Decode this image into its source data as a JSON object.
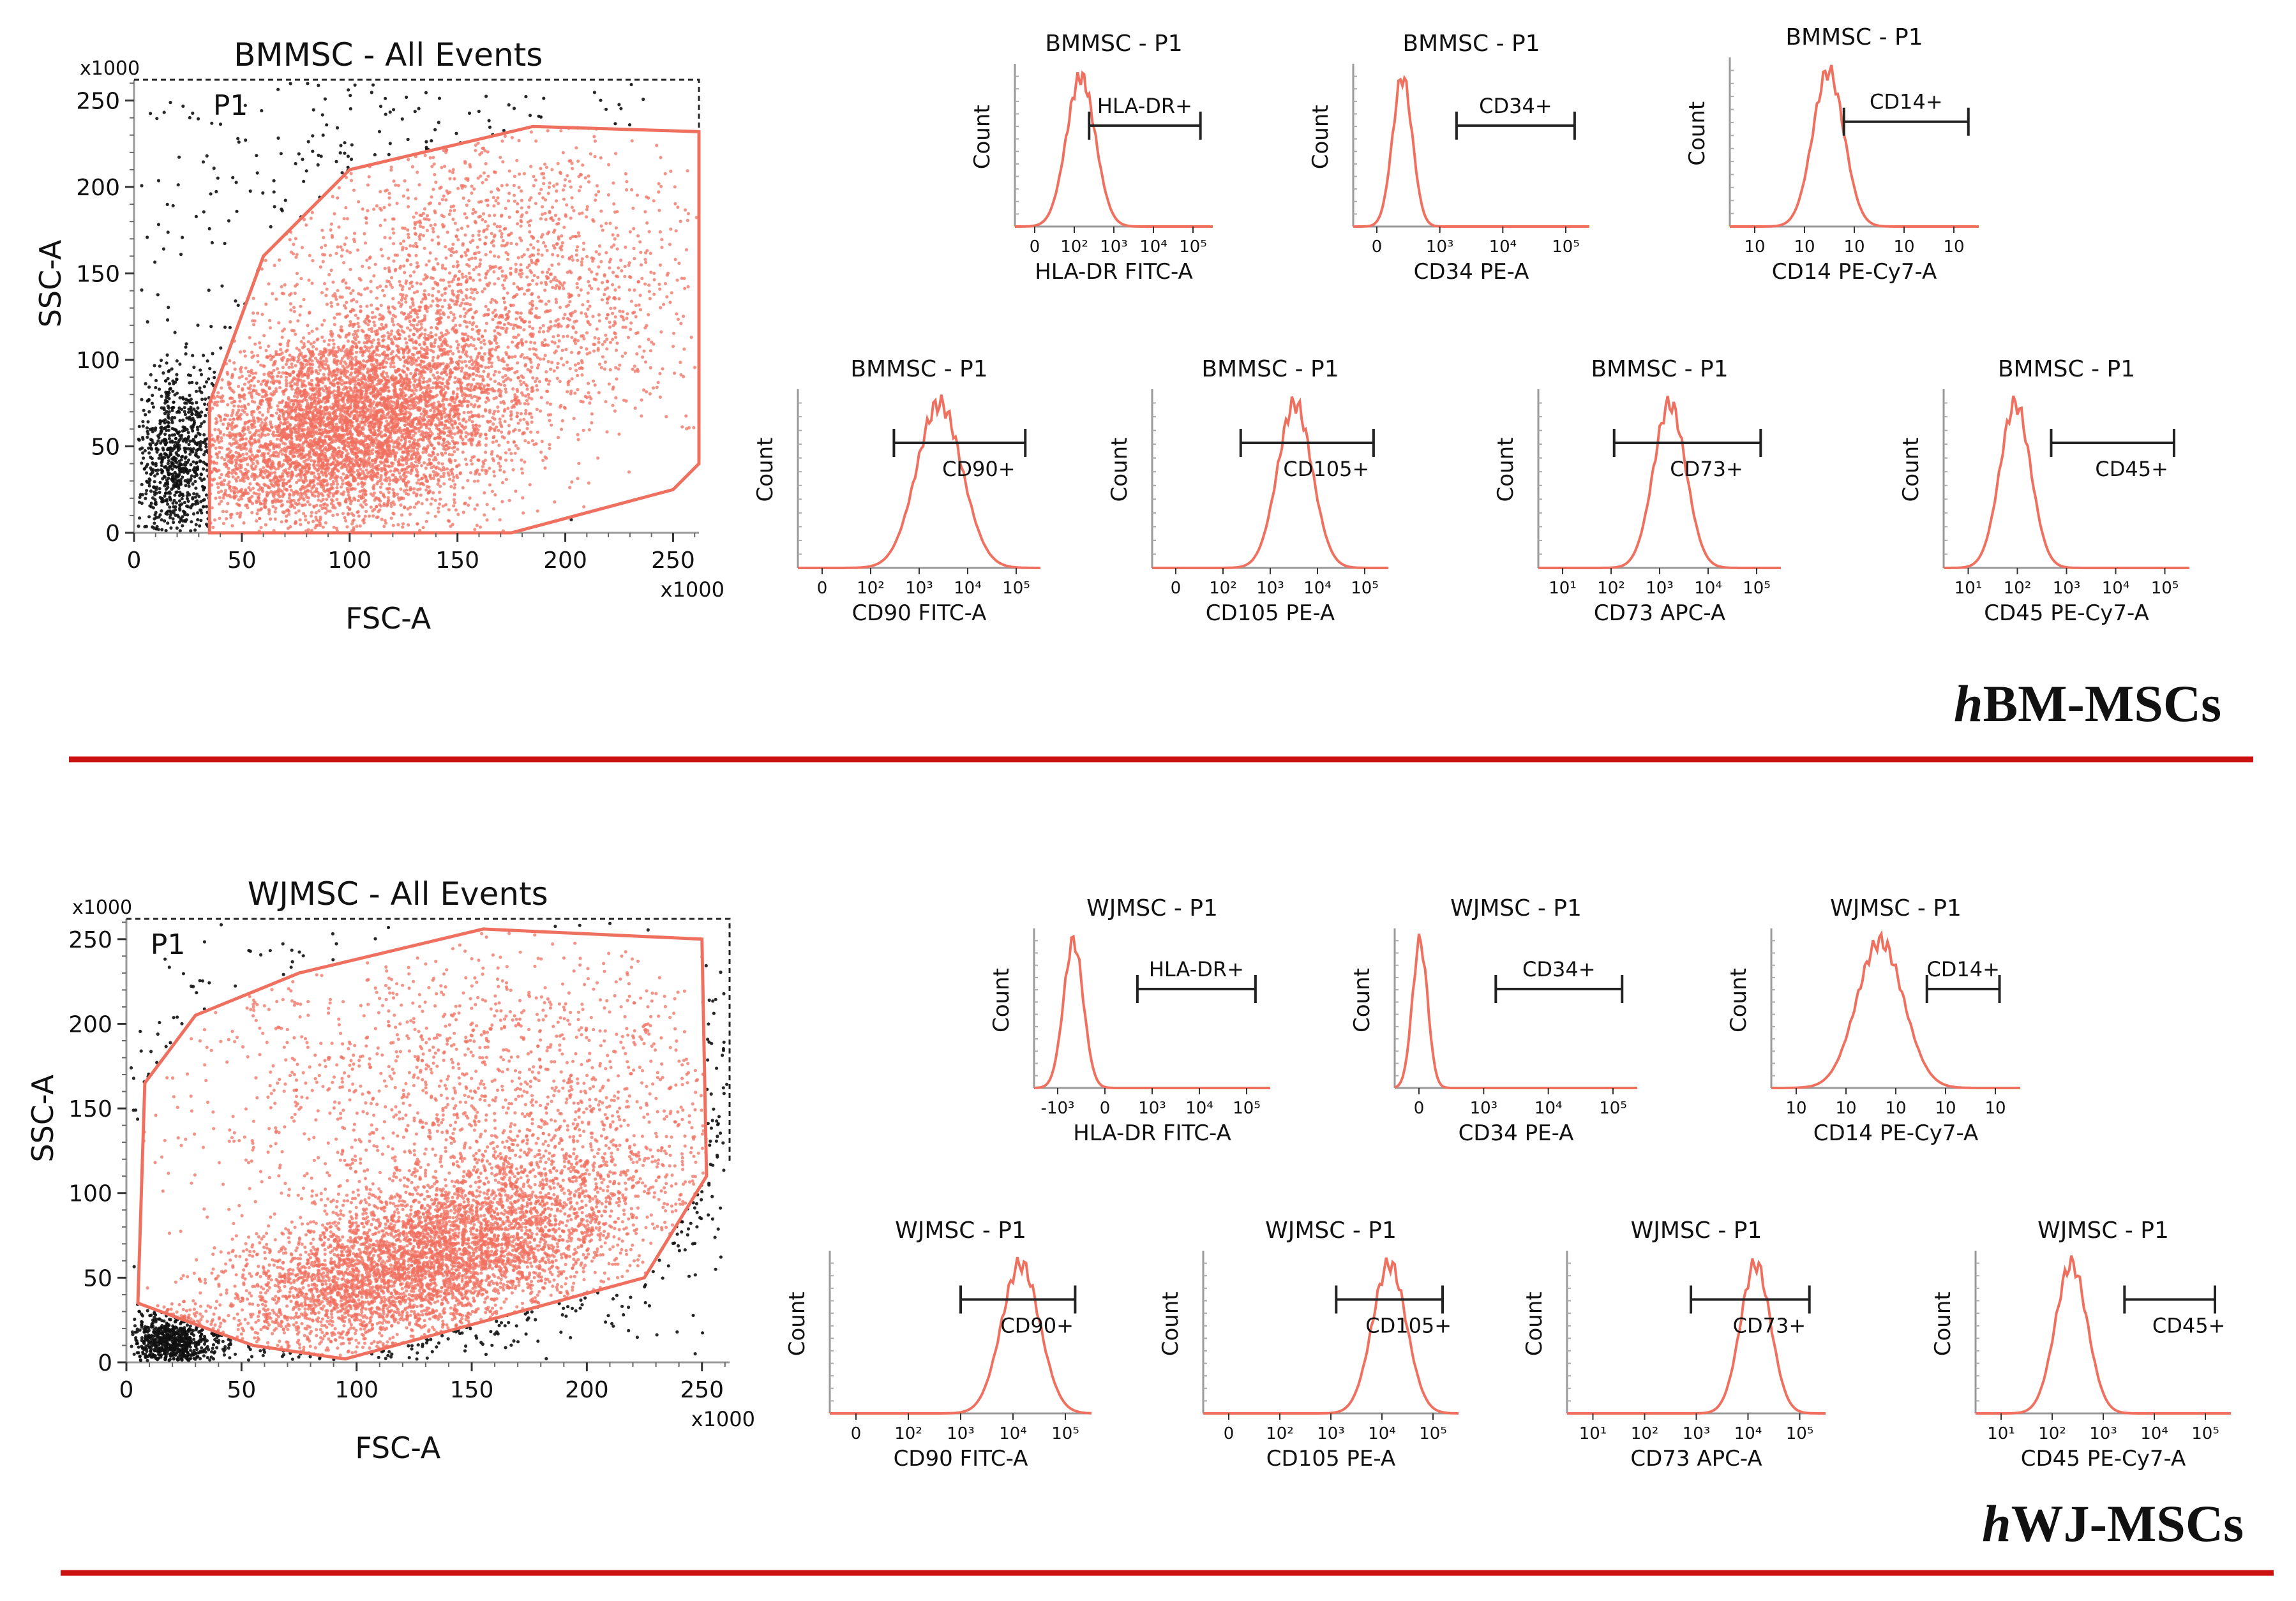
{
  "colors": {
    "accent": "#f07060",
    "separator": "#cc1111",
    "events": "#111111",
    "axis": "#999999"
  },
  "panels": [
    {
      "label_prefix": "h",
      "label_rest": "BM-MSCs",
      "scatter": {
        "title": "BMMSC - All Events",
        "gate": "P1",
        "xlabel": "FSC-A",
        "ylabel": "SSC-A",
        "multiplier_x": "x1000",
        "multiplier_y": "x1000"
      },
      "histograms": [
        {
          "title": "BMMSC - P1",
          "xlabel": "HLA-DR FITC-A",
          "ylabel": "Count",
          "gate": "HLA-DR+"
        },
        {
          "title": "BMMSC - P1",
          "xlabel": "CD34 PE-A",
          "ylabel": "Count",
          "gate": "CD34+"
        },
        {
          "title": "BMMSC - P1",
          "xlabel": "CD14 PE-Cy7-A",
          "ylabel": "Count",
          "gate": "CD14+"
        },
        {
          "title": "BMMSC - P1",
          "xlabel": "CD90 FITC-A",
          "ylabel": "Count",
          "gate": "CD90+"
        },
        {
          "title": "BMMSC - P1",
          "xlabel": "CD105 PE-A",
          "ylabel": "Count",
          "gate": "CD105+"
        },
        {
          "title": "BMMSC - P1",
          "xlabel": "CD73 APC-A",
          "ylabel": "Count",
          "gate": "CD73+"
        },
        {
          "title": "BMMSC - P1",
          "xlabel": "CD45 PE-Cy7-A",
          "ylabel": "Count",
          "gate": "CD45+"
        }
      ]
    },
    {
      "label_prefix": "h",
      "label_rest": "WJ-MSCs",
      "scatter": {
        "title": "WJMSC - All Events",
        "gate": "P1",
        "xlabel": "FSC-A",
        "ylabel": "SSC-A",
        "multiplier_x": "x1000",
        "multiplier_y": "x1000"
      },
      "histograms": [
        {
          "title": "WJMSC  - P1",
          "xlabel": "HLA-DR FITC-A",
          "ylabel": "Count",
          "gate": "HLA-DR+"
        },
        {
          "title": "WJMSC  - P1",
          "xlabel": "CD34 PE-A",
          "ylabel": "Count",
          "gate": "CD34+"
        },
        {
          "title": "WJMSC  - P1",
          "xlabel": "CD14 PE-Cy7-A",
          "ylabel": "Count",
          "gate": "CD14+"
        },
        {
          "title": "WJMSC - P1",
          "xlabel": "CD90 FITC-A",
          "ylabel": "Count",
          "gate": "CD90+"
        },
        {
          "title": "WJMSC - P1",
          "xlabel": "CD105 PE-A",
          "ylabel": "Count",
          "gate": "CD105+"
        },
        {
          "title": "WJMSC - P1",
          "xlabel": "CD73 APC-A",
          "ylabel": "Count",
          "gate": "CD73+"
        },
        {
          "title": "WJMSC - P1",
          "xlabel": "CD45 PE-Cy7-A",
          "ylabel": "Count",
          "gate": "CD45+"
        }
      ]
    }
  ],
  "chart_data": [
    {
      "type": "scatter",
      "title": "BMMSC - All Events",
      "xlabel": "FSC-A",
      "ylabel": "SSC-A",
      "xlim": [
        0,
        262
      ],
      "ylim": [
        0,
        262
      ],
      "x_ticks": [
        0,
        50,
        100,
        150,
        200,
        250
      ],
      "y_ticks": [
        0,
        50,
        100,
        150,
        200,
        250
      ],
      "gate": {
        "name": "P1",
        "vertices": [
          [
            35,
            0
          ],
          [
            35,
            75
          ],
          [
            60,
            160
          ],
          [
            100,
            210
          ],
          [
            185,
            235
          ],
          [
            262,
            232
          ],
          [
            262,
            40
          ],
          [
            250,
            25
          ],
          [
            175,
            0
          ]
        ]
      },
      "populations": [
        {
          "name": "main",
          "center": [
            100,
            62
          ],
          "spread": [
            40,
            28
          ],
          "rotation": 0.48,
          "count": 6000
        },
        {
          "name": "upper",
          "center": [
            175,
            140
          ],
          "spread": [
            45,
            45
          ],
          "rotation": 0.3,
          "count": 1600
        },
        {
          "name": "debris",
          "center": [
            18,
            38
          ],
          "spread": [
            8,
            28
          ],
          "rotation": 0,
          "count": 600
        },
        {
          "name": "sparse",
          "center": [
            130,
            185
          ],
          "spread": [
            80,
            45
          ],
          "rotation": 0,
          "count": 400
        }
      ]
    },
    {
      "type": "scatter",
      "title": "WJMSC - All Events",
      "xlabel": "FSC-A",
      "ylabel": "SSC-A",
      "xlim": [
        0,
        262
      ],
      "ylim": [
        0,
        262
      ],
      "x_ticks": [
        0,
        50,
        100,
        150,
        200,
        250
      ],
      "y_ticks": [
        0,
        50,
        100,
        150,
        200,
        250
      ],
      "gate": {
        "name": "P1",
        "vertices": [
          [
            5,
            35
          ],
          [
            8,
            165
          ],
          [
            30,
            205
          ],
          [
            75,
            230
          ],
          [
            155,
            256
          ],
          [
            250,
            250
          ],
          [
            252,
            110
          ],
          [
            225,
            50
          ],
          [
            95,
            2
          ],
          [
            55,
            10
          ]
        ]
      },
      "populations": [
        {
          "name": "main",
          "center": [
            130,
            60
          ],
          "spread": [
            48,
            22
          ],
          "rotation": 0.45,
          "count": 5000
        },
        {
          "name": "upper",
          "center": [
            180,
            140
          ],
          "spread": [
            55,
            50
          ],
          "rotation": 0.2,
          "count": 1500
        },
        {
          "name": "debris",
          "center": [
            20,
            12
          ],
          "spread": [
            9,
            8
          ],
          "rotation": 0,
          "count": 700
        },
        {
          "name": "sparse",
          "center": [
            100,
            170
          ],
          "spread": [
            70,
            45
          ],
          "rotation": 0,
          "count": 600
        }
      ]
    },
    {
      "type": "area",
      "panel": "BMMSC",
      "histograms": [
        {
          "marker": "HLA-DR FITC-A",
          "x_ticks": [
            "0",
            "10²",
            "10³",
            "10⁴",
            "10⁵"
          ],
          "peak_log": 2.1,
          "width": 0.35,
          "gate_log": [
            2.3,
            5.0
          ]
        },
        {
          "marker": "CD34 PE-A",
          "x_ticks": [
            "0",
            "10³",
            "10⁴",
            "10⁵"
          ],
          "peak_log": 1.5,
          "width": 0.2,
          "gate_log": [
            2.6,
            5.0
          ]
        },
        {
          "marker": "CD14 PE-Cy7-A",
          "x_ticks": [
            "10",
            "10",
            "10",
            "10",
            "10"
          ],
          "peak_log": 2.4,
          "width": 0.3,
          "gate_log": [
            2.7,
            5.1
          ]
        },
        {
          "marker": "CD90 FITC-A",
          "x_ticks": [
            "0",
            "10²",
            "10³",
            "10⁴",
            "10⁵"
          ],
          "peak_log": 3.3,
          "width": 0.45,
          "gate_log": [
            2.4,
            5.0
          ]
        },
        {
          "marker": "CD105 PE-A",
          "x_ticks": [
            "0",
            "10²",
            "10³",
            "10⁴",
            "10⁵"
          ],
          "peak_log": 3.4,
          "width": 0.35,
          "gate_log": [
            2.3,
            5.0
          ]
        },
        {
          "marker": "CD73 APC-A",
          "x_ticks": [
            "10¹",
            "10²",
            "10³",
            "10⁴",
            "10⁵"
          ],
          "peak_log": 3.1,
          "width": 0.32,
          "gate_log": [
            2.0,
            4.9
          ]
        },
        {
          "marker": "CD45 PE-Cy7-A",
          "x_ticks": [
            "10¹",
            "10²",
            "10³",
            "10⁴",
            "10⁵"
          ],
          "peak_log": 1.9,
          "width": 0.3,
          "gate_log": [
            2.6,
            5.0
          ]
        }
      ]
    },
    {
      "type": "area",
      "panel": "WJMSC",
      "histograms": [
        {
          "marker": "HLA-DR FITC-A",
          "x_ticks": [
            "-10³",
            "0",
            "10³",
            "10⁴",
            "10⁵"
          ],
          "peak_log": 1.3,
          "width": 0.2,
          "gate_log": [
            2.6,
            5.0
          ]
        },
        {
          "marker": "CD34 PE-A",
          "x_ticks": [
            "0",
            "10³",
            "10⁴",
            "10⁵"
          ],
          "peak_log": 1.0,
          "width": 0.15,
          "gate_log": [
            2.5,
            5.0
          ]
        },
        {
          "marker": "CD14 PE-Cy7-A",
          "x_ticks": [
            "10",
            "10",
            "10",
            "10",
            "10"
          ],
          "peak_log": 2.6,
          "width": 0.45,
          "gate_log": [
            3.5,
            4.9
          ]
        },
        {
          "marker": "CD90 FITC-A",
          "x_ticks": [
            "0",
            "10²",
            "10³",
            "10⁴",
            "10⁵"
          ],
          "peak_log": 4.0,
          "width": 0.35,
          "gate_log": [
            2.9,
            5.0
          ]
        },
        {
          "marker": "CD105 PE-A",
          "x_ticks": [
            "0",
            "10²",
            "10³",
            "10⁴",
            "10⁵"
          ],
          "peak_log": 4.0,
          "width": 0.32,
          "gate_log": [
            3.0,
            5.0
          ]
        },
        {
          "marker": "CD73 APC-A",
          "x_ticks": [
            "10¹",
            "10²",
            "10³",
            "10⁴",
            "10⁵"
          ],
          "peak_log": 4.0,
          "width": 0.28,
          "gate_log": [
            2.8,
            5.0
          ]
        },
        {
          "marker": "CD45 PE-Cy7-A",
          "x_ticks": [
            "10¹",
            "10²",
            "10³",
            "10⁴",
            "10⁵"
          ],
          "peak_log": 2.3,
          "width": 0.3,
          "gate_log": [
            3.3,
            5.0
          ]
        }
      ]
    }
  ]
}
